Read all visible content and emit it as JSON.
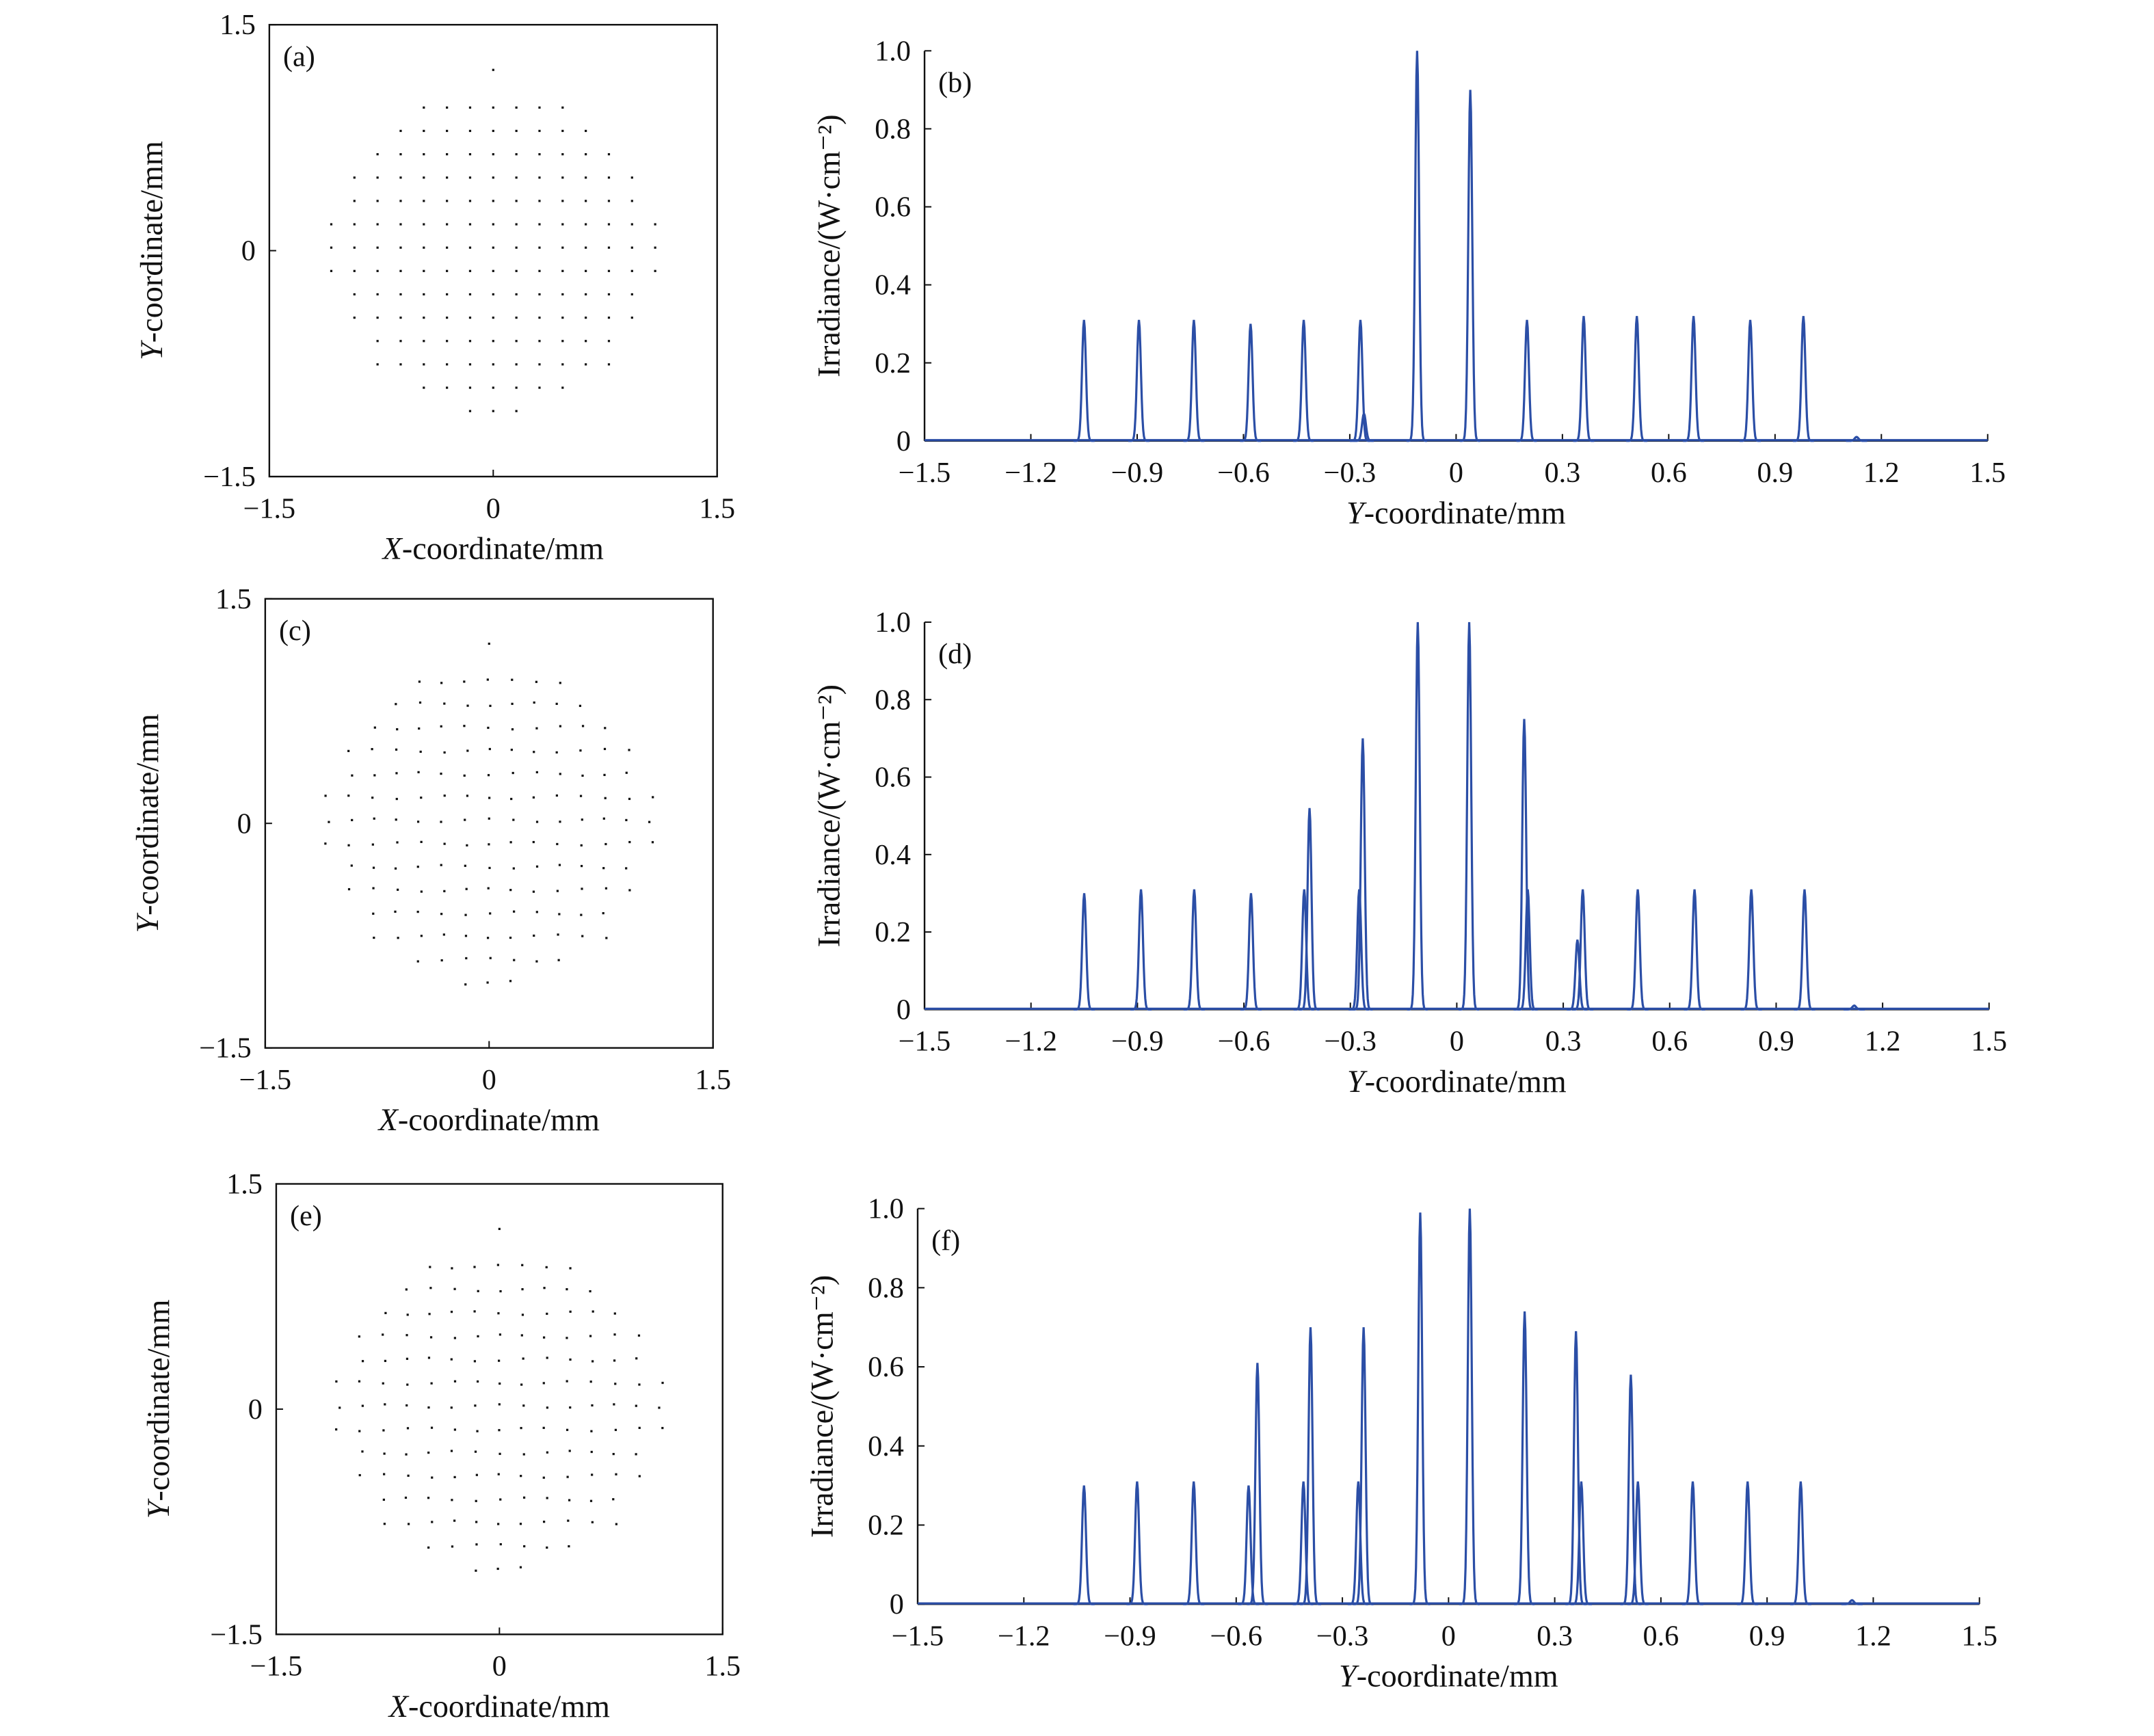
{
  "chart_data": [
    {
      "id": "a",
      "type": "scatter",
      "panel_label": "(a)",
      "xlabel_var": "X",
      "xlabel_rest": "-coordinate/mm",
      "ylabel_var": "Y",
      "ylabel_rest": "-coordinate/mm",
      "xlim": [
        -1.5,
        1.5
      ],
      "ylim": [
        -1.5,
        1.5
      ],
      "xticks": [
        "−1.5",
        "0",
        "1.5"
      ],
      "yticks": [
        "−1.5",
        "0",
        "1.5"
      ],
      "spot_grid": {
        "pitch": 0.155,
        "radius": 1.1
      },
      "color": "#111111"
    },
    {
      "id": "b",
      "type": "line",
      "panel_label": "(b)",
      "xlabel_var": "Y",
      "xlabel_rest": "-coordinate/mm",
      "ylabel": "Irradiance/(W·cm⁻²)",
      "xlim": [
        -1.5,
        1.5
      ],
      "ylim": [
        0,
        1.0
      ],
      "xticks": [
        "−1.5",
        "−1.2",
        "−0.9",
        "−0.6",
        "−0.3",
        "0",
        "0.3",
        "0.6",
        "0.9",
        "1.2",
        "1.5"
      ],
      "yticks": [
        "0",
        "0.2",
        "0.4",
        "0.6",
        "0.8",
        "1.0"
      ],
      "color": "#2b4ea6",
      "peaks": {
        "x": [
          -1.05,
          -0.895,
          -0.74,
          -0.58,
          -0.43,
          -0.27,
          -0.26,
          -0.11,
          0.04,
          0.2,
          0.36,
          0.51,
          0.67,
          0.83,
          0.98,
          1.13
        ],
        "y": [
          0.31,
          0.31,
          0.31,
          0.3,
          0.31,
          0.31,
          0.07,
          1.0,
          0.9,
          0.31,
          0.32,
          0.32,
          0.32,
          0.31,
          0.32,
          0.01
        ]
      }
    },
    {
      "id": "c",
      "type": "scatter",
      "panel_label": "(c)",
      "xlabel_var": "X",
      "xlabel_rest": "-coordinate/mm",
      "ylabel_var": "Y",
      "ylabel_rest": "-coordinate/mm",
      "xlim": [
        -1.5,
        1.5
      ],
      "ylim": [
        -1.5,
        1.5
      ],
      "xticks": [
        "−1.5",
        "0",
        "1.5"
      ],
      "yticks": [
        "−1.5",
        "0",
        "1.5"
      ],
      "spot_grid": {
        "pitch": 0.155,
        "radius": 1.1
      },
      "color": "#111111"
    },
    {
      "id": "d",
      "type": "line",
      "panel_label": "(d)",
      "xlabel_var": "Y",
      "xlabel_rest": "-coordinate/mm",
      "ylabel": "Irradiance/(W·cm⁻²)",
      "xlim": [
        -1.5,
        1.5
      ],
      "ylim": [
        0,
        1.0
      ],
      "xticks": [
        "−1.5",
        "−1.2",
        "−0.9",
        "−0.6",
        "−0.3",
        "0",
        "0.3",
        "0.6",
        "0.9",
        "1.2",
        "1.5"
      ],
      "yticks": [
        "0",
        "0.2",
        "0.4",
        "0.6",
        "0.8",
        "1.0"
      ],
      "color": "#2b4ea6",
      "peaks": {
        "x": [
          -1.05,
          -0.89,
          -0.74,
          -0.58,
          -0.43,
          -0.415,
          -0.275,
          -0.265,
          -0.11,
          0.035,
          0.19,
          0.2,
          0.34,
          0.355,
          0.51,
          0.67,
          0.83,
          0.98,
          1.12
        ],
        "y": [
          0.3,
          0.31,
          0.31,
          0.3,
          0.31,
          0.52,
          0.31,
          0.7,
          1.0,
          1.0,
          0.75,
          0.31,
          0.18,
          0.31,
          0.31,
          0.31,
          0.31,
          0.31,
          0.01
        ]
      }
    },
    {
      "id": "e",
      "type": "scatter",
      "panel_label": "(e)",
      "xlabel_var": "X",
      "xlabel_rest": "-coordinate/mm",
      "ylabel_var": "Y",
      "ylabel_rest": "-coordinate/mm",
      "xlim": [
        -1.5,
        1.5
      ],
      "ylim": [
        -1.5,
        1.5
      ],
      "xticks": [
        "−1.5",
        "0",
        "1.5"
      ],
      "yticks": [
        "−1.5",
        "0",
        "1.5"
      ],
      "spot_grid": {
        "pitch": 0.155,
        "radius": 1.1
      },
      "color": "#111111"
    },
    {
      "id": "f",
      "type": "line",
      "panel_label": "(f)",
      "xlabel_var": "Y",
      "xlabel_rest": "-coordinate/mm",
      "ylabel": "Irradiance/(W·cm⁻²)",
      "xlim": [
        -1.5,
        1.5
      ],
      "ylim": [
        0,
        1.0
      ],
      "xticks": [
        "−1.5",
        "−1.2",
        "−0.9",
        "−0.6",
        "−0.3",
        "0",
        "0.3",
        "0.6",
        "0.9",
        "1.2",
        "1.5"
      ],
      "yticks": [
        "0",
        "0.2",
        "0.4",
        "0.6",
        "0.8",
        "1.0"
      ],
      "color": "#2b4ea6",
      "peaks": {
        "x": [
          -1.03,
          -0.88,
          -0.72,
          -0.565,
          -0.54,
          -0.41,
          -0.39,
          -0.255,
          -0.24,
          -0.08,
          0.06,
          0.215,
          0.36,
          0.375,
          0.515,
          0.535,
          0.69,
          0.845,
          0.995,
          1.14
        ],
        "y": [
          0.3,
          0.31,
          0.31,
          0.3,
          0.61,
          0.31,
          0.7,
          0.31,
          0.7,
          0.99,
          1.0,
          0.74,
          0.69,
          0.31,
          0.58,
          0.31,
          0.31,
          0.31,
          0.31,
          0.01
        ]
      }
    }
  ]
}
